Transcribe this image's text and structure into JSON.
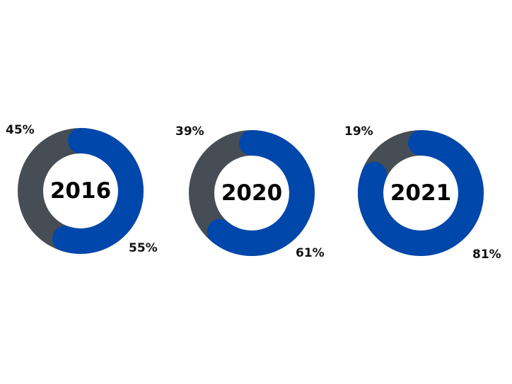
{
  "colors": {
    "primary": "#0047AB",
    "secondary": "#474D55"
  },
  "chart_data": [
    {
      "type": "pie",
      "center_label": "2016",
      "slices": [
        {
          "value": 55,
          "label": "55%",
          "color": "#0047AB"
        },
        {
          "value": 45,
          "label": "45%",
          "color": "#474D55"
        }
      ]
    },
    {
      "type": "pie",
      "center_label": "2020",
      "slices": [
        {
          "value": 61,
          "label": "61%",
          "color": "#0047AB"
        },
        {
          "value": 39,
          "label": "39%",
          "color": "#474D55"
        }
      ]
    },
    {
      "type": "pie",
      "center_label": "2021",
      "slices": [
        {
          "value": 81,
          "label": "81%",
          "color": "#0047AB"
        },
        {
          "value": 19,
          "label": "19%",
          "color": "#474D55"
        }
      ]
    }
  ]
}
